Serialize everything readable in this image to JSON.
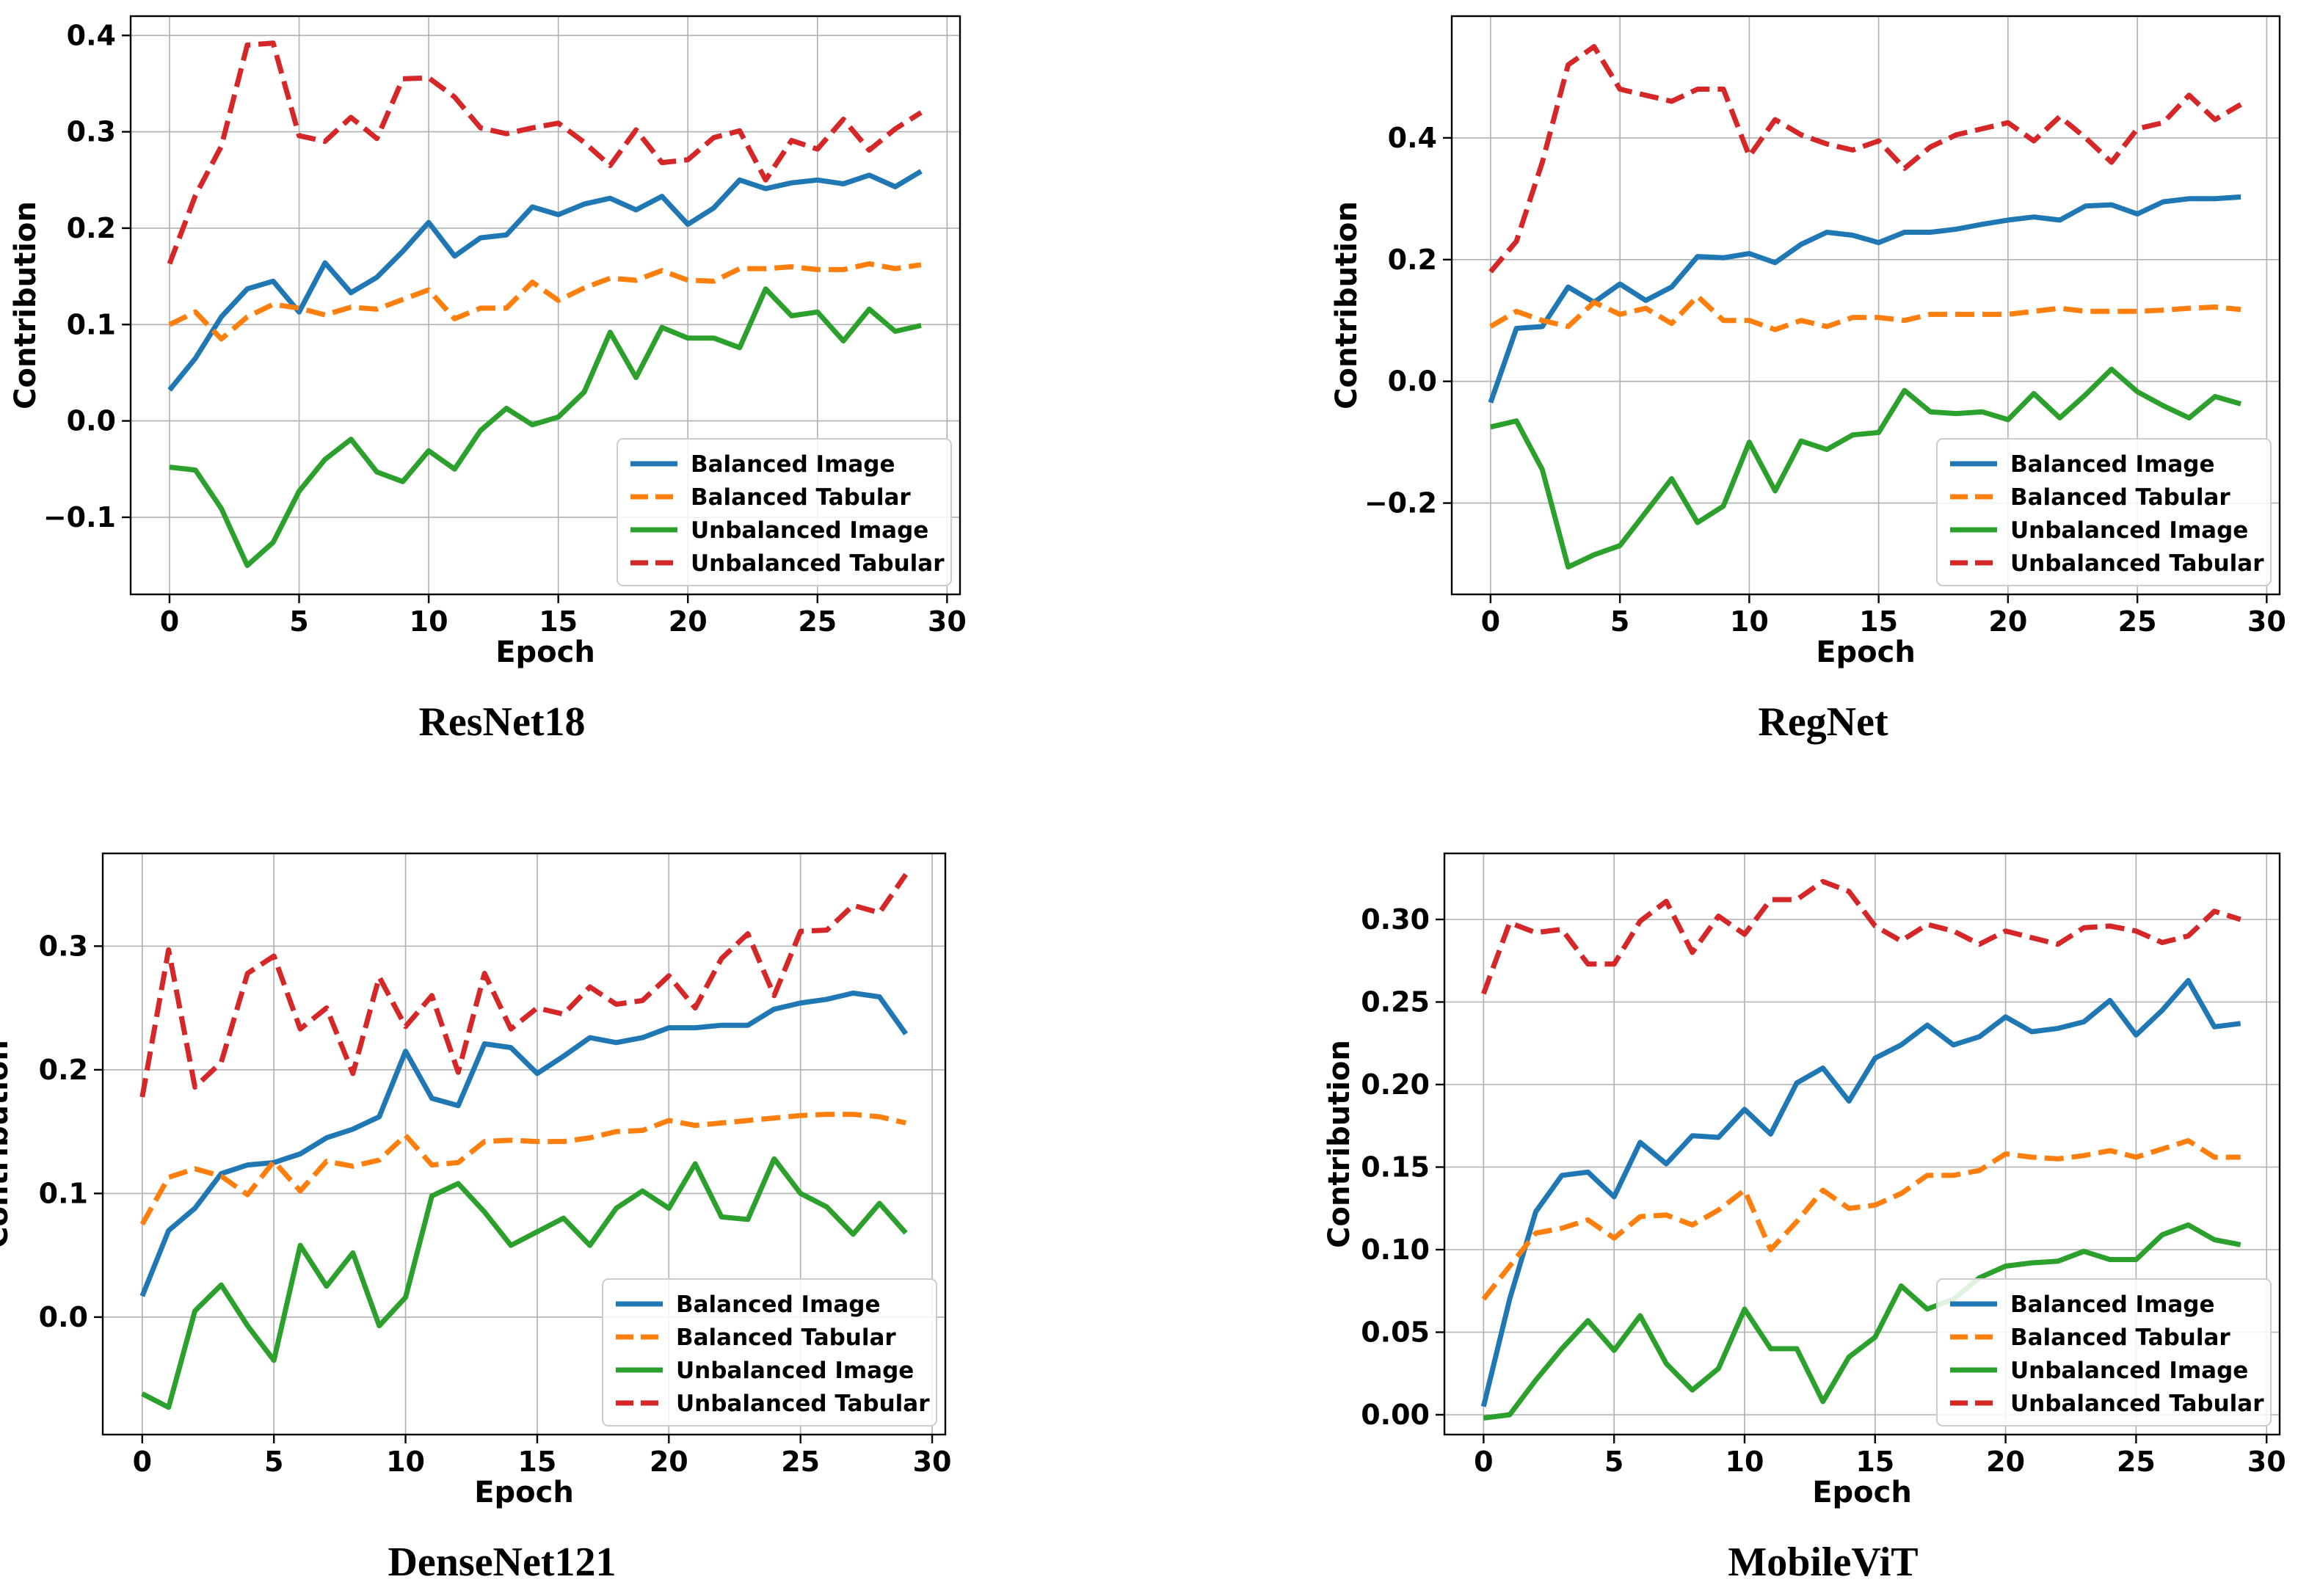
{
  "chart_data": [
    {
      "type": "line",
      "caption": "ResNet18",
      "xlabel": "Epoch",
      "ylabel": "Contribution",
      "xlim": [
        -1.5,
        30.5
      ],
      "ylim": [
        -0.18,
        0.42
      ],
      "xticks": [
        0,
        5,
        10,
        15,
        20,
        25,
        30
      ],
      "yticks": [
        -0.1,
        0.0,
        0.1,
        0.2,
        0.3,
        0.4
      ],
      "ytick_labels": [
        "−0.1",
        "0.0",
        "0.1",
        "0.2",
        "0.3",
        "0.4"
      ],
      "grid": true,
      "legend_position": "lower-right",
      "x": [
        0,
        1,
        2,
        3,
        4,
        5,
        6,
        7,
        8,
        9,
        10,
        11,
        12,
        13,
        14,
        15,
        16,
        17,
        18,
        19,
        20,
        21,
        22,
        23,
        24,
        25,
        26,
        27,
        28,
        29
      ],
      "series": [
        {
          "name": "Balanced Image",
          "color": "#1f77b4",
          "dash": "solid",
          "values": [
            0.032,
            0.065,
            0.108,
            0.137,
            0.145,
            0.113,
            0.164,
            0.133,
            0.149,
            0.176,
            0.206,
            0.171,
            0.19,
            0.193,
            0.222,
            0.214,
            0.225,
            0.231,
            0.219,
            0.233,
            0.204,
            0.221,
            0.25,
            0.241,
            0.247,
            0.25,
            0.246,
            0.255,
            0.243,
            0.259
          ]
        },
        {
          "name": "Balanced Tabular",
          "color": "#ff7f0e",
          "dash": "dashed",
          "values": [
            0.1,
            0.113,
            0.085,
            0.108,
            0.121,
            0.117,
            0.11,
            0.118,
            0.116,
            0.126,
            0.136,
            0.106,
            0.117,
            0.117,
            0.144,
            0.125,
            0.138,
            0.148,
            0.146,
            0.156,
            0.146,
            0.145,
            0.158,
            0.158,
            0.16,
            0.157,
            0.157,
            0.163,
            0.158,
            0.162
          ]
        },
        {
          "name": "Unbalanced Image",
          "color": "#2ca02c",
          "dash": "solid",
          "values": [
            -0.048,
            -0.051,
            -0.091,
            -0.15,
            -0.126,
            -0.073,
            -0.04,
            -0.019,
            -0.053,
            -0.063,
            -0.031,
            -0.05,
            -0.01,
            0.013,
            -0.004,
            0.004,
            0.03,
            0.092,
            0.045,
            0.097,
            0.086,
            0.086,
            0.076,
            0.137,
            0.109,
            0.113,
            0.083,
            0.116,
            0.093,
            0.099
          ]
        },
        {
          "name": "Unbalanced Tabular",
          "color": "#d62728",
          "dash": "dashed",
          "values": [
            0.163,
            0.234,
            0.285,
            0.39,
            0.392,
            0.296,
            0.29,
            0.315,
            0.293,
            0.355,
            0.356,
            0.336,
            0.304,
            0.298,
            0.304,
            0.309,
            0.289,
            0.265,
            0.302,
            0.268,
            0.271,
            0.294,
            0.301,
            0.25,
            0.291,
            0.282,
            0.313,
            0.281,
            0.303,
            0.32
          ]
        }
      ]
    },
    {
      "type": "line",
      "caption": "RegNet",
      "xlabel": "Epoch",
      "ylabel": "Contribution",
      "xlim": [
        -1.5,
        30.5
      ],
      "ylim": [
        -0.35,
        0.6
      ],
      "xticks": [
        0,
        5,
        10,
        15,
        20,
        25,
        30
      ],
      "yticks": [
        -0.2,
        0.0,
        0.2,
        0.4
      ],
      "ytick_labels": [
        "−0.2",
        "0.0",
        "0.2",
        "0.4"
      ],
      "grid": true,
      "legend_position": "lower-right",
      "x": [
        0,
        1,
        2,
        3,
        4,
        5,
        6,
        7,
        8,
        9,
        10,
        11,
        12,
        13,
        14,
        15,
        16,
        17,
        18,
        19,
        20,
        21,
        22,
        23,
        24,
        25,
        26,
        27,
        28,
        29
      ],
      "series": [
        {
          "name": "Balanced Image",
          "color": "#1f77b4",
          "dash": "solid",
          "values": [
            -0.035,
            0.087,
            0.09,
            0.155,
            0.13,
            0.16,
            0.133,
            0.155,
            0.205,
            0.203,
            0.21,
            0.195,
            0.225,
            0.245,
            0.24,
            0.228,
            0.245,
            0.245,
            0.25,
            0.258,
            0.265,
            0.27,
            0.265,
            0.288,
            0.29,
            0.275,
            0.295,
            0.3,
            0.3,
            0.303
          ]
        },
        {
          "name": "Balanced Tabular",
          "color": "#ff7f0e",
          "dash": "dashed",
          "values": [
            0.09,
            0.115,
            0.1,
            0.09,
            0.13,
            0.11,
            0.12,
            0.095,
            0.14,
            0.1,
            0.1,
            0.085,
            0.1,
            0.09,
            0.105,
            0.105,
            0.1,
            0.11,
            0.11,
            0.11,
            0.11,
            0.115,
            0.12,
            0.115,
            0.115,
            0.115,
            0.117,
            0.12,
            0.122,
            0.118
          ]
        },
        {
          "name": "Unbalanced Image",
          "color": "#2ca02c",
          "dash": "solid",
          "values": [
            -0.075,
            -0.065,
            -0.145,
            -0.305,
            -0.285,
            -0.27,
            -0.215,
            -0.16,
            -0.232,
            -0.205,
            -0.1,
            -0.18,
            -0.098,
            -0.112,
            -0.088,
            -0.084,
            -0.015,
            -0.05,
            -0.053,
            -0.05,
            -0.063,
            -0.02,
            -0.06,
            -0.022,
            0.02,
            -0.017,
            -0.04,
            -0.06,
            -0.025,
            -0.037
          ]
        },
        {
          "name": "Unbalanced Tabular",
          "color": "#d62728",
          "dash": "dashed",
          "values": [
            0.18,
            0.23,
            0.36,
            0.52,
            0.55,
            0.48,
            0.47,
            0.46,
            0.48,
            0.48,
            0.37,
            0.43,
            0.405,
            0.39,
            0.38,
            0.395,
            0.35,
            0.385,
            0.405,
            0.415,
            0.425,
            0.395,
            0.435,
            0.4,
            0.36,
            0.415,
            0.425,
            0.47,
            0.43,
            0.455
          ]
        }
      ]
    },
    {
      "type": "line",
      "caption": "DenseNet121",
      "xlabel": "Epoch",
      "ylabel": "Contribution",
      "xlim": [
        -1.5,
        30.5
      ],
      "ylim": [
        -0.095,
        0.375
      ],
      "xticks": [
        0,
        5,
        10,
        15,
        20,
        25,
        30
      ],
      "yticks": [
        0.0,
        0.1,
        0.2,
        0.3
      ],
      "ytick_labels": [
        "0.0",
        "0.1",
        "0.2",
        "0.3"
      ],
      "grid": true,
      "legend_position": "lower-right",
      "x": [
        0,
        1,
        2,
        3,
        4,
        5,
        6,
        7,
        8,
        9,
        10,
        11,
        12,
        13,
        14,
        15,
        16,
        17,
        18,
        19,
        20,
        21,
        22,
        23,
        24,
        25,
        26,
        27,
        28,
        29
      ],
      "series": [
        {
          "name": "Balanced Image",
          "color": "#1f77b4",
          "dash": "solid",
          "values": [
            0.017,
            0.07,
            0.088,
            0.116,
            0.123,
            0.125,
            0.132,
            0.145,
            0.152,
            0.162,
            0.215,
            0.177,
            0.171,
            0.221,
            0.218,
            0.197,
            0.211,
            0.226,
            0.222,
            0.226,
            0.234,
            0.234,
            0.236,
            0.236,
            0.249,
            0.254,
            0.257,
            0.262,
            0.259,
            0.229
          ]
        },
        {
          "name": "Balanced Tabular",
          "color": "#ff7f0e",
          "dash": "dashed",
          "values": [
            0.075,
            0.113,
            0.12,
            0.114,
            0.099,
            0.126,
            0.102,
            0.126,
            0.122,
            0.127,
            0.147,
            0.123,
            0.125,
            0.142,
            0.143,
            0.142,
            0.142,
            0.145,
            0.15,
            0.151,
            0.159,
            0.155,
            0.157,
            0.159,
            0.161,
            0.163,
            0.164,
            0.164,
            0.162,
            0.157
          ]
        },
        {
          "name": "Unbalanced Image",
          "color": "#2ca02c",
          "dash": "solid",
          "values": [
            -0.062,
            -0.073,
            0.005,
            0.026,
            -0.007,
            -0.035,
            0.058,
            0.025,
            0.052,
            -0.007,
            0.016,
            0.098,
            0.108,
            0.085,
            0.058,
            0.069,
            0.08,
            0.058,
            0.088,
            0.102,
            0.088,
            0.124,
            0.081,
            0.079,
            0.128,
            0.1,
            0.089,
            0.067,
            0.092,
            0.068
          ]
        },
        {
          "name": "Unbalanced Tabular",
          "color": "#d62728",
          "dash": "dashed",
          "values": [
            0.178,
            0.297,
            0.186,
            0.206,
            0.278,
            0.292,
            0.233,
            0.25,
            0.197,
            0.275,
            0.235,
            0.26,
            0.198,
            0.278,
            0.233,
            0.25,
            0.245,
            0.267,
            0.253,
            0.256,
            0.276,
            0.25,
            0.29,
            0.31,
            0.26,
            0.312,
            0.313,
            0.333,
            0.327,
            0.358
          ]
        }
      ]
    },
    {
      "type": "line",
      "caption": "MobileViT",
      "xlabel": "Epoch",
      "ylabel": "Contribution",
      "xlim": [
        -1.5,
        30.5
      ],
      "ylim": [
        -0.012,
        0.34
      ],
      "xticks": [
        0,
        5,
        10,
        15,
        20,
        25,
        30
      ],
      "yticks": [
        0.0,
        0.05,
        0.1,
        0.15,
        0.2,
        0.25,
        0.3
      ],
      "ytick_labels": [
        "0.00",
        "0.05",
        "0.10",
        "0.15",
        "0.20",
        "0.25",
        "0.30"
      ],
      "grid": true,
      "legend_position": "lower-right",
      "x": [
        0,
        1,
        2,
        3,
        4,
        5,
        6,
        7,
        8,
        9,
        10,
        11,
        12,
        13,
        14,
        15,
        16,
        17,
        18,
        19,
        20,
        21,
        22,
        23,
        24,
        25,
        26,
        27,
        28,
        29
      ],
      "series": [
        {
          "name": "Balanced Image",
          "color": "#1f77b4",
          "dash": "solid",
          "values": [
            0.005,
            0.07,
            0.123,
            0.145,
            0.147,
            0.132,
            0.165,
            0.152,
            0.169,
            0.168,
            0.185,
            0.17,
            0.201,
            0.21,
            0.19,
            0.216,
            0.224,
            0.236,
            0.224,
            0.229,
            0.241,
            0.232,
            0.234,
            0.238,
            0.251,
            0.23,
            0.245,
            0.263,
            0.235,
            0.237
          ]
        },
        {
          "name": "Balanced Tabular",
          "color": "#ff7f0e",
          "dash": "dashed",
          "values": [
            0.07,
            0.09,
            0.11,
            0.113,
            0.118,
            0.107,
            0.12,
            0.121,
            0.115,
            0.124,
            0.136,
            0.1,
            0.117,
            0.136,
            0.125,
            0.127,
            0.134,
            0.145,
            0.145,
            0.148,
            0.158,
            0.156,
            0.155,
            0.157,
            0.16,
            0.156,
            0.161,
            0.166,
            0.156,
            0.156
          ]
        },
        {
          "name": "Unbalanced Image",
          "color": "#2ca02c",
          "dash": "solid",
          "values": [
            -0.002,
            0.0,
            0.021,
            0.04,
            0.057,
            0.039,
            0.06,
            0.031,
            0.015,
            0.028,
            0.064,
            0.04,
            0.04,
            0.008,
            0.035,
            0.047,
            0.078,
            0.064,
            0.07,
            0.083,
            0.09,
            0.092,
            0.093,
            0.099,
            0.094,
            0.094,
            0.109,
            0.115,
            0.106,
            0.103
          ]
        },
        {
          "name": "Unbalanced Tabular",
          "color": "#d62728",
          "dash": "dashed",
          "values": [
            0.255,
            0.298,
            0.292,
            0.294,
            0.273,
            0.273,
            0.299,
            0.311,
            0.28,
            0.302,
            0.291,
            0.312,
            0.312,
            0.323,
            0.317,
            0.296,
            0.287,
            0.297,
            0.293,
            0.285,
            0.293,
            0.289,
            0.285,
            0.295,
            0.296,
            0.293,
            0.286,
            0.29,
            0.305,
            0.3
          ]
        }
      ]
    }
  ]
}
